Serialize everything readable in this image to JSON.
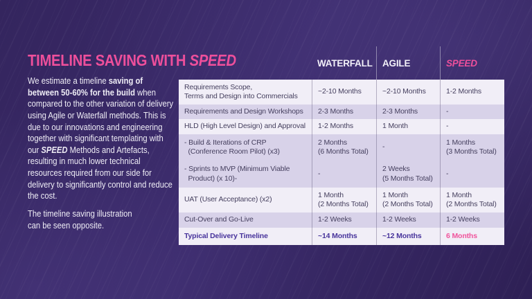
{
  "slide": {
    "title": {
      "main": "TIMELINE SAVING WITH ",
      "accent": "SPEED"
    }
  },
  "intro": {
    "s1": "We estimate a timeline ",
    "s2": "saving of between 50-60% for the build",
    "s3": " when compared to the other variation of delivery using Agile or Waterfall methods. This is due to our innovations and engineering together with significant templating with our ",
    "s4": "SPEED",
    "s5": " Methods and Artefacts, resulting in much lower technical resources required from our side for delivery to significantly control and reduce the cost.",
    "p2": "The timeline saving illustration\ncan be seen opposite."
  },
  "table": {
    "columns": [
      "WATERFALL",
      "AGILE",
      "SPEED"
    ],
    "rows": [
      {
        "label": "Requirements Scope,\nTerms and Design into Commercials",
        "waterfall": "~2-10 Months",
        "agile": "~2-10 Months",
        "speed": "1-2 Months"
      },
      {
        "label": "Requirements and Design Workshops",
        "waterfall": "2-3 Months",
        "agile": "2-3 Months",
        "speed": "-"
      },
      {
        "label": "HLD (High Level Design) and Approval",
        "waterfall": "1-2 Months",
        "agile": "1 Month",
        "speed": "-"
      },
      {
        "label": "- Build & Iterations of CRP\n  (Conference Room Pilot) (x3)",
        "waterfall": "2 Months\n(6 Months Total)",
        "agile": "-",
        "speed": "1 Months\n(3 Months Total)"
      },
      {
        "label": "- Sprints to MVP (Minimum Viable\n  Product) (x 10)-",
        "waterfall": "-",
        "agile": "2 Weeks\n(5 Months Total)",
        "speed": "-"
      },
      {
        "label": "UAT (User Acceptance) (x2)",
        "waterfall": "1 Month\n(2 Months Total)",
        "agile": "1 Month\n(2 Months Total)",
        "speed": "1 Month\n(2 Months Total)"
      },
      {
        "label": "Cut-Over and Go-Live",
        "waterfall": "1-2 Weeks",
        "agile": "1-2 Weeks",
        "speed": "1-2 Weeks"
      },
      {
        "label": "Typical Delivery Timeline",
        "waterfall": "~14 Months",
        "agile": "~12 Months",
        "speed": "6 Months"
      }
    ]
  },
  "colors": {
    "background": "#35265f",
    "accent_pink": "#ee4f9b",
    "row_light": "#f1eef7",
    "row_shaded": "#d8d2e9",
    "body_text": "#46405f",
    "total_text": "#47339b"
  }
}
